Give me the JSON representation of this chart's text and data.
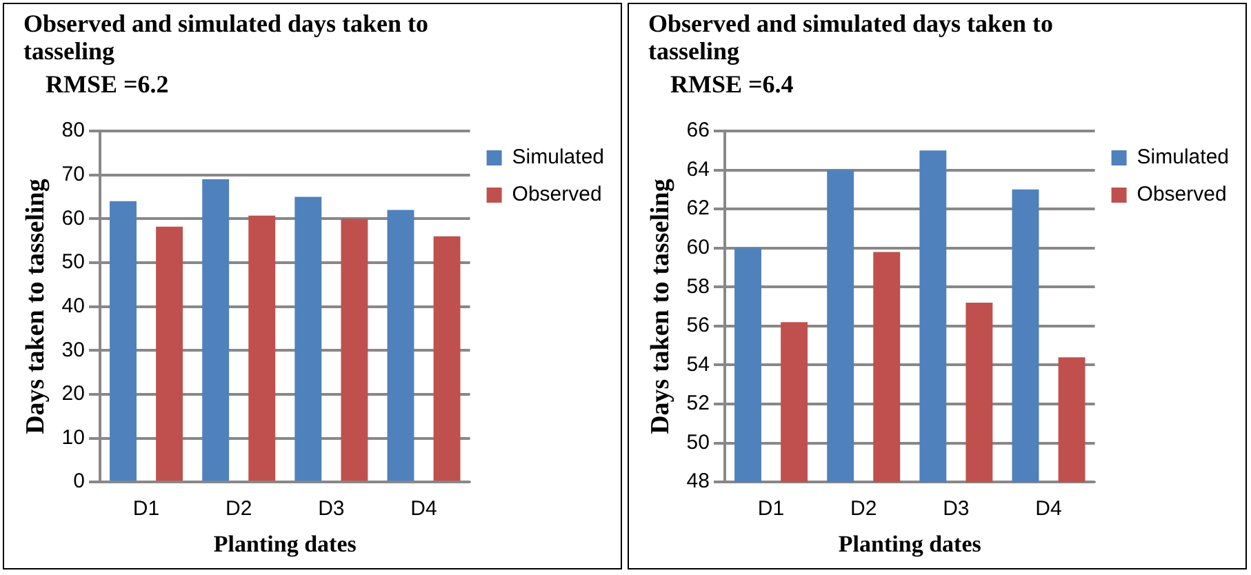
{
  "chart_data": [
    {
      "type": "bar",
      "title": "Observed and simulated days taken to tasseling",
      "subtitle": "RMSE =6.2",
      "xlabel": "Planting dates",
      "ylabel": "Days taken to tasseling",
      "categories": [
        "D1",
        "D2",
        "D3",
        "D4"
      ],
      "series": [
        {
          "name": "Simulated",
          "color": "#4f81bd",
          "values": [
            64,
            69,
            65,
            62
          ]
        },
        {
          "name": "Observed",
          "color": "#c0504d",
          "values": [
            58.2,
            60.7,
            60,
            56
          ]
        }
      ],
      "ylim": [
        0,
        80
      ],
      "yticks": [
        0,
        10,
        20,
        30,
        40,
        50,
        60,
        70,
        80
      ],
      "grid": "y",
      "legend": "top right"
    },
    {
      "type": "bar",
      "title": "Observed and simulated days taken to tasseling",
      "subtitle": "RMSE =6.4",
      "xlabel": "Planting dates",
      "ylabel": "Days taken to tasseling",
      "categories": [
        "D1",
        "D2",
        "D3",
        "D4"
      ],
      "series": [
        {
          "name": "Simulated",
          "color": "#4f81bd",
          "values": [
            60,
            64,
            65,
            63
          ]
        },
        {
          "name": "Observed",
          "color": "#c0504d",
          "values": [
            56.2,
            59.8,
            57.2,
            54.4
          ]
        }
      ],
      "ylim": [
        48,
        66
      ],
      "yticks": [
        48,
        50,
        52,
        54,
        56,
        58,
        60,
        62,
        64,
        66
      ],
      "grid": "y",
      "legend": "top right"
    }
  ]
}
